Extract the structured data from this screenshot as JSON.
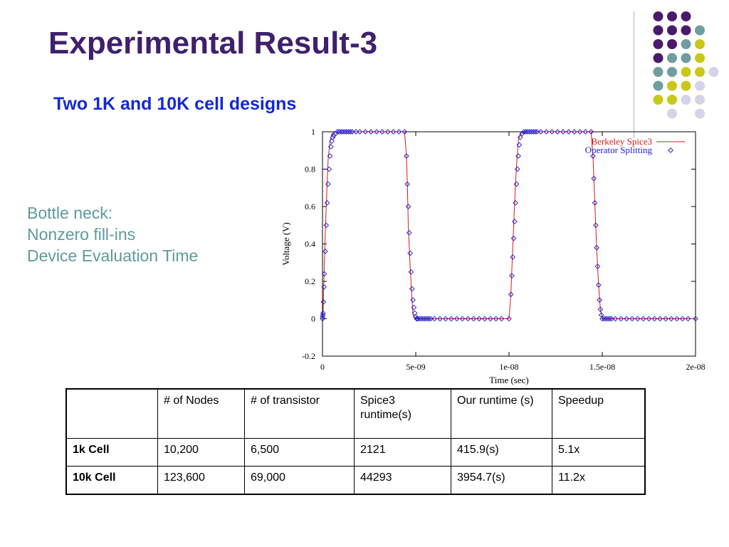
{
  "slide": {
    "title": "Experimental Result-3",
    "subtitle": "Two 1K and 10K cell designs"
  },
  "notes": [
    "Bottle neck:",
    "Nonzero fill-ins",
    "Device Evaluation Time"
  ],
  "decor": {
    "dot_colors": [
      "#4a1a6b",
      "#6f9ea0",
      "#c8c81a",
      "#d4d4e6"
    ],
    "dot_rows": [
      [
        null,
        0,
        0,
        0,
        null
      ],
      [
        null,
        0,
        0,
        0,
        1
      ],
      [
        null,
        0,
        0,
        1,
        2
      ],
      [
        null,
        0,
        1,
        1,
        2
      ],
      [
        null,
        1,
        1,
        2,
        2,
        3
      ],
      [
        null,
        1,
        2,
        2,
        3
      ],
      [
        null,
        2,
        2,
        3,
        3
      ],
      [
        null,
        null,
        3,
        null,
        3
      ]
    ]
  },
  "chart_data": {
    "type": "line",
    "xlabel": "Time (sec)",
    "ylabel": "Voltage (V)",
    "xlim": [
      0,
      2e-08
    ],
    "ylim": [
      -0.2,
      1
    ],
    "xticks": [
      {
        "value": 0,
        "label": "0"
      },
      {
        "value": 5e-09,
        "label": "5e-09"
      },
      {
        "value": 1e-08,
        "label": "1e-08"
      },
      {
        "value": 1.5e-08,
        "label": "1.5e-08"
      },
      {
        "value": 2e-08,
        "label": "2e-08"
      }
    ],
    "yticks": [
      {
        "value": -0.2,
        "label": "-0.2"
      },
      {
        "value": 0,
        "label": "0"
      },
      {
        "value": 0.2,
        "label": "0.2"
      },
      {
        "value": 0.4,
        "label": "0.4"
      },
      {
        "value": 0.6,
        "label": "0.6"
      },
      {
        "value": 0.8,
        "label": "0.8"
      },
      {
        "value": 1,
        "label": "1"
      }
    ],
    "legend_position": "top-right",
    "series": [
      {
        "name": "Berkeley Spice3",
        "style": "line",
        "color": "#e01818",
        "x": [
          0,
          3e-11,
          1e-10,
          2e-10,
          3e-10,
          4e-10,
          5e-10,
          7e-10,
          1e-09,
          4.4e-09,
          4.5e-09,
          4.55e-09,
          4.6e-09,
          4.7e-09,
          4.8e-09,
          4.85e-09,
          5e-09,
          1e-08,
          1.01e-08,
          1.02e-08,
          1.03e-08,
          1.04e-08,
          1.05e-08,
          1.06e-08,
          1.1e-08,
          1.44e-08,
          1.45e-08,
          1.46e-08,
          1.47e-08,
          1.48e-08,
          1.49e-08,
          1.5e-08,
          2e-08
        ],
        "y": [
          0,
          0.03,
          0.3,
          0.6,
          0.85,
          0.95,
          0.99,
          1,
          1,
          1,
          0.87,
          0.72,
          0.5,
          0.28,
          0.1,
          0.02,
          0,
          0,
          0.13,
          0.38,
          0.62,
          0.82,
          0.95,
          0.99,
          1,
          1,
          0.87,
          0.62,
          0.38,
          0.18,
          0.05,
          0,
          0
        ]
      },
      {
        "name": "Operator Splitting",
        "style": "markers",
        "marker": "diamond",
        "color": "#2020d0",
        "x": [
          0,
          1e-11,
          2e-11,
          3e-11,
          5e-11,
          8e-11,
          1e-10,
          1.5e-10,
          2e-10,
          2.5e-10,
          3e-10,
          3.5e-10,
          4e-10,
          4.5e-10,
          5e-10,
          5.5e-10,
          6e-10,
          7e-10,
          8e-10,
          9e-10,
          1e-09,
          1.1e-09,
          1.2e-09,
          1.3e-09,
          1.4e-09,
          1.5e-09,
          1.6e-09,
          1.8e-09,
          2e-09,
          2.3e-09,
          2.6e-09,
          2.9e-09,
          3.2e-09,
          3.5e-09,
          3.8e-09,
          4.1e-09,
          4.4e-09,
          4.5e-09,
          4.55e-09,
          4.6e-09,
          4.65e-09,
          4.7e-09,
          4.75e-09,
          4.8e-09,
          4.85e-09,
          4.9e-09,
          4.95e-09,
          5e-09,
          5.05e-09,
          5.1e-09,
          5.2e-09,
          5.3e-09,
          5.4e-09,
          5.5e-09,
          5.6e-09,
          5.7e-09,
          5.8e-09,
          6e-09,
          6.3e-09,
          6.6e-09,
          6.9e-09,
          7.2e-09,
          7.5e-09,
          7.8e-09,
          8.1e-09,
          8.4e-09,
          8.7e-09,
          9e-09,
          9.3e-09,
          9.6e-09,
          1e-08,
          1.01e-08,
          1.015e-08,
          1.02e-08,
          1.025e-08,
          1.03e-08,
          1.035e-08,
          1.04e-08,
          1.045e-08,
          1.05e-08,
          1.055e-08,
          1.06e-08,
          1.07e-08,
          1.08e-08,
          1.09e-08,
          1.1e-08,
          1.11e-08,
          1.12e-08,
          1.13e-08,
          1.14e-08,
          1.15e-08,
          1.17e-08,
          1.2e-08,
          1.23e-08,
          1.26e-08,
          1.29e-08,
          1.32e-08,
          1.35e-08,
          1.38e-08,
          1.41e-08,
          1.44e-08,
          1.45e-08,
          1.455e-08,
          1.46e-08,
          1.465e-08,
          1.47e-08,
          1.475e-08,
          1.48e-08,
          1.485e-08,
          1.49e-08,
          1.495e-08,
          1.5e-08,
          1.51e-08,
          1.52e-08,
          1.53e-08,
          1.54e-08,
          1.55e-08,
          1.57e-08,
          1.6e-08,
          1.63e-08,
          1.66e-08,
          1.69e-08,
          1.72e-08,
          1.75e-08,
          1.78e-08,
          1.81e-08,
          1.84e-08,
          1.87e-08,
          1.9e-08,
          1.93e-08,
          1.96e-08,
          2e-08
        ],
        "y": [
          0,
          0.01,
          0.02,
          0.03,
          0.09,
          0.17,
          0.24,
          0.36,
          0.5,
          0.62,
          0.72,
          0.8,
          0.87,
          0.92,
          0.95,
          0.97,
          0.98,
          0.99,
          1,
          1,
          1,
          1,
          1,
          1,
          1,
          1,
          1,
          1,
          1,
          1,
          1,
          1,
          1,
          1,
          1,
          1,
          1,
          0.87,
          0.72,
          0.6,
          0.46,
          0.35,
          0.25,
          0.16,
          0.1,
          0.06,
          0.03,
          0.01,
          0,
          0,
          0,
          0,
          0,
          0,
          0,
          0,
          0,
          0,
          0,
          0,
          0,
          0,
          0,
          0,
          0,
          0,
          0,
          0,
          0,
          0,
          0,
          0.13,
          0.23,
          0.33,
          0.43,
          0.52,
          0.62,
          0.72,
          0.8,
          0.87,
          0.93,
          0.97,
          0.99,
          1,
          1,
          1,
          1,
          1,
          1,
          1,
          1,
          1,
          1,
          1,
          1,
          1,
          1,
          1,
          1,
          1,
          1,
          0.87,
          0.75,
          0.62,
          0.5,
          0.38,
          0.28,
          0.18,
          0.1,
          0.05,
          0.02,
          0,
          0,
          0,
          0,
          0,
          0,
          0,
          0,
          0,
          0,
          0,
          0,
          0,
          0,
          0,
          0,
          0,
          0,
          0,
          0,
          0
        ]
      }
    ]
  },
  "table": {
    "header": [
      "",
      "# of Nodes",
      "# of transistor",
      "Spice3 runtime(s)",
      "Our runtime (s)",
      "Speedup"
    ],
    "rows": [
      [
        "1k Cell",
        "10,200",
        "6,500",
        "2121",
        "415.9(s)",
        "5.1x"
      ],
      [
        "10k Cell",
        "123,600",
        "69,000",
        "44293",
        "3954.7(s)",
        "11.2x"
      ]
    ]
  }
}
